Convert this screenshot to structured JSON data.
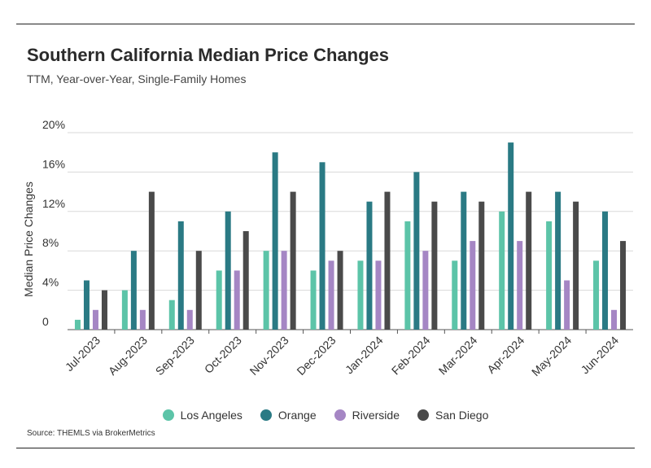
{
  "header": {
    "title": "Southern California Median Price Changes",
    "subtitle": "TTM, Year-over-Year, Single-Family Homes"
  },
  "footer": {
    "source": "Source:  THEMLS via BrokerMetrics"
  },
  "chart_data": {
    "type": "bar",
    "title": "Southern California Median Price Changes",
    "subtitle": "TTM, Year-over-Year, Single-Family Homes",
    "xlabel": "",
    "ylabel": "Median Price Changes",
    "ylim": [
      0,
      20
    ],
    "yticks": [
      0,
      4,
      8,
      12,
      16,
      20
    ],
    "ytick_labels": [
      "0",
      "4%",
      "8%",
      "12%",
      "16%",
      "20%"
    ],
    "grid": true,
    "legend_position": "bottom",
    "categories": [
      "Jul-2023",
      "Aug-2023",
      "Sep-2023",
      "Oct-2023",
      "Nov-2023",
      "Dec-2023",
      "Jan-2024",
      "Feb-2024",
      "Mar-2024",
      "Apr-2024",
      "May-2024",
      "Jun-2024"
    ],
    "series": [
      {
        "name": "Los Angeles",
        "color": "#5cc4a8",
        "values": [
          1,
          4,
          3,
          6,
          8,
          6,
          7,
          11,
          7,
          12,
          11,
          7
        ]
      },
      {
        "name": "Orange",
        "color": "#2a7a84",
        "values": [
          5,
          8,
          11,
          12,
          18,
          17,
          13,
          16,
          14,
          19,
          14,
          12
        ]
      },
      {
        "name": "Riverside",
        "color": "#a586c4",
        "values": [
          2,
          2,
          2,
          6,
          8,
          7,
          7,
          8,
          9,
          9,
          5,
          2
        ]
      },
      {
        "name": "San Diego",
        "color": "#4a4a4a",
        "values": [
          4,
          14,
          8,
          10,
          14,
          8,
          14,
          13,
          13,
          14,
          13,
          9
        ]
      }
    ]
  }
}
